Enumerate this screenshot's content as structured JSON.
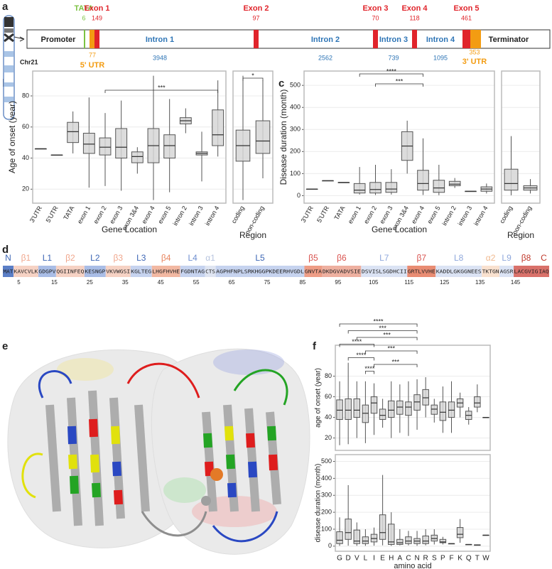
{
  "panel_a": {
    "label": "a",
    "chromosome": "Chr21",
    "promoter": "Promoter",
    "terminator": "Terminator",
    "tata": {
      "name": "TATA",
      "length": 6
    },
    "utr5": {
      "name": "5' UTR",
      "length": 77
    },
    "utr3": {
      "name": "3' UTR",
      "length": 353
    },
    "exons": [
      {
        "name": "Exon 1",
        "length": 149
      },
      {
        "name": "Exon 2",
        "length": 97
      },
      {
        "name": "Exon 3",
        "length": 70
      },
      {
        "name": "Exon 4",
        "length": 118
      },
      {
        "name": "Exon 5",
        "length": 461
      }
    ],
    "introns": [
      {
        "name": "Intron 1",
        "length": 3948
      },
      {
        "name": "Intron 2",
        "length": 2562
      },
      {
        "name": "Intron 3",
        "length": 739
      },
      {
        "name": "Intron 4",
        "length": 1095
      }
    ]
  },
  "panel_b": {
    "label": "b",
    "ylabel": "Age of onset (year)",
    "xlabel": "Gene Location",
    "region_label": "Region",
    "ylim": [
      11,
      96
    ],
    "yticks": [
      20,
      40,
      60,
      80
    ],
    "main": {
      "categories": [
        "3'UTR",
        "5'UTR",
        "TATA",
        "exon 1",
        "exon 2",
        "exon 3",
        "exon 3&4",
        "exon 4",
        "exon 5",
        "intron 2",
        "intron 3",
        "intron 4"
      ],
      "boxes": [
        [
          46,
          46,
          46,
          46,
          46
        ],
        [
          42,
          42,
          42,
          42,
          42
        ],
        [
          43,
          50,
          57,
          63,
          70
        ],
        [
          21,
          43,
          49,
          56,
          79
        ],
        [
          22,
          42,
          47,
          53,
          69
        ],
        [
          19,
          40,
          47,
          59,
          77
        ],
        [
          30,
          37,
          41,
          44,
          47
        ],
        [
          13,
          37,
          48,
          59,
          93
        ],
        [
          18,
          40,
          48,
          55,
          78
        ],
        [
          56,
          62,
          64,
          66,
          72
        ],
        [
          25,
          42,
          43,
          44,
          57
        ],
        [
          41,
          48,
          55,
          71,
          90
        ]
      ],
      "significance": [
        {
          "label": "***",
          "from": "exon 2",
          "to": "intron 4"
        }
      ]
    },
    "region": {
      "categories": [
        "coding",
        "non-coding"
      ],
      "boxes": [
        [
          13,
          38,
          48,
          58,
          93
        ],
        [
          27,
          43,
          51,
          64,
          90
        ]
      ],
      "significance": [
        {
          "label": "*",
          "from": "coding",
          "to": "non-coding"
        }
      ]
    }
  },
  "panel_c": {
    "label": "c",
    "ylabel": "Disease duration (month)",
    "xlabel": "Gene Location",
    "region_label": "Region",
    "ylim": [
      -34,
      565
    ],
    "yticks": [
      0,
      100,
      200,
      300,
      400,
      500
    ],
    "main": {
      "categories": [
        "3'UTR",
        "5'UTR",
        "TATA",
        "exon 1",
        "exon 2",
        "exon 3",
        "exon 3&4",
        "exon 4",
        "exon 5",
        "intron 2",
        "intron 3",
        "intron 4"
      ],
      "boxes": [
        [
          30,
          30,
          30,
          30,
          30
        ],
        [
          68,
          68,
          68,
          68,
          68
        ],
        [
          60,
          60,
          60,
          60,
          60
        ],
        [
          5,
          12,
          25,
          55,
          130
        ],
        [
          3,
          12,
          28,
          60,
          140
        ],
        [
          5,
          15,
          30,
          60,
          120
        ],
        [
          100,
          160,
          225,
          290,
          340
        ],
        [
          3,
          25,
          55,
          115,
          260
        ],
        [
          2,
          15,
          35,
          70,
          140
        ],
        [
          35,
          45,
          52,
          65,
          80
        ],
        [
          20,
          20,
          20,
          20,
          20
        ],
        [
          10,
          20,
          30,
          40,
          55
        ]
      ],
      "significance": [
        {
          "label": "****",
          "from": "exon 1",
          "to": "exon 4"
        },
        {
          "label": "***",
          "from": "exon 2",
          "to": "exon 4"
        }
      ]
    },
    "region": {
      "categories": [
        "coding",
        "non-coding"
      ],
      "boxes": [
        [
          2,
          25,
          55,
          120,
          270
        ],
        [
          10,
          25,
          35,
          45,
          75
        ]
      ],
      "significance": []
    }
  },
  "panel_d": {
    "label": "d",
    "segments": [
      {
        "name": "N",
        "residues": "MAT",
        "color": "#5b7fc7",
        "label_color": "#3d66b5"
      },
      {
        "name": "β1",
        "residues": "KAVCVLK",
        "color": "#f6d2c4",
        "label_color": "#f0a78d"
      },
      {
        "name": "L1",
        "residues": "GDGPV",
        "color": "#a9bde6",
        "label_color": "#3d66b5"
      },
      {
        "name": "β2",
        "residues": "QGIINFEQ",
        "color": "#f6d2c4",
        "label_color": "#f0a78d"
      },
      {
        "name": "L2",
        "residues": "KESNGP",
        "color": "#a9bde6",
        "label_color": "#3d66b5"
      },
      {
        "name": "β3",
        "residues": "VKVWGSI",
        "color": "#f6d2c4",
        "label_color": "#f0a78d"
      },
      {
        "name": "L3",
        "residues": "KGLTEG",
        "color": "#c6d3ef",
        "label_color": "#3d66b5"
      },
      {
        "name": "β4",
        "residues": "LHGFHVHE",
        "color": "#f2b8a2",
        "label_color": "#e8855f"
      },
      {
        "name": "L4",
        "residues": "FGDNTAG",
        "color": "#c6d3ef",
        "label_color": "#6f8fd0"
      },
      {
        "name": "α1",
        "residues": "CTS",
        "color": "#dfe5f2",
        "label_color": "#b7c4de"
      },
      {
        "name": "L5",
        "residues": "AGPHFNPLSRKHGGPKDEERHVGDL",
        "color": "#c6d3ef",
        "label_color": "#3d66b5"
      },
      {
        "name": "β5",
        "residues": "GNVTA",
        "color": "#ee9d86",
        "label_color": "#d9534f"
      },
      {
        "name": "β6",
        "residues": "DKDGVADVSIE",
        "color": "#eeb0a0",
        "label_color": "#d9534f"
      },
      {
        "name": "L7",
        "residues": "DSVISLSGDHCII",
        "color": "#dbe3f4",
        "label_color": "#8fa8dc"
      },
      {
        "name": "β7",
        "residues": "GRTLVVHE",
        "color": "#e98c73",
        "label_color": "#d9534f"
      },
      {
        "name": "L8",
        "residues": "KADDLGKGGNEES",
        "color": "#dbe3f4",
        "label_color": "#8fa8dc"
      },
      {
        "name": "α2",
        "residues": "TKTGN",
        "color": "#f9e1cf",
        "label_color": "#f0b88d"
      },
      {
        "name": "L9",
        "residues": "AGSR",
        "color": "#dbe3f4",
        "label_color": "#8fa8dc"
      },
      {
        "name": "β8",
        "residues": "LACGVIG",
        "color": "#d9716a",
        "label_color": "#c0392b"
      },
      {
        "name": "C",
        "residues": "IAQ",
        "color": "#d9716a",
        "label_color": "#c0392b"
      }
    ],
    "residue_ticks": [
      5,
      15,
      25,
      35,
      45,
      55,
      65,
      75,
      85,
      95,
      105,
      115,
      125,
      135,
      145
    ]
  },
  "panel_e": {
    "label": "e"
  },
  "panel_f": {
    "label": "f",
    "xlabel": "amino acid",
    "categories": [
      "G",
      "D",
      "V",
      "L",
      "I",
      "E",
      "H",
      "A",
      "C",
      "N",
      "R",
      "S",
      "P",
      "F",
      "K",
      "Q",
      "T",
      "W"
    ],
    "age": {
      "ylabel": "age of onset (year)",
      "ylim": [
        8,
        110
      ],
      "yticks": [
        20,
        40,
        60,
        80
      ],
      "boxes": [
        [
          13,
          38,
          47,
          57,
          75
        ],
        [
          14,
          38,
          47,
          58,
          93
        ],
        [
          20,
          40,
          47,
          58,
          75
        ],
        [
          15,
          35,
          44,
          52,
          75
        ],
        [
          23,
          44,
          54,
          60,
          73
        ],
        [
          30,
          38,
          42,
          48,
          58
        ],
        [
          20,
          40,
          47,
          56,
          75
        ],
        [
          25,
          43,
          50,
          56,
          72
        ],
        [
          22,
          42,
          50,
          55,
          75
        ],
        [
          28,
          47,
          55,
          62,
          77
        ],
        [
          40,
          52,
          59,
          67,
          79
        ],
        [
          35,
          43,
          48,
          52,
          58
        ],
        [
          25,
          37,
          45,
          55,
          70
        ],
        [
          25,
          40,
          47,
          55,
          75
        ],
        [
          40,
          50,
          54,
          58,
          64
        ],
        [
          33,
          38,
          42,
          46,
          50
        ],
        [
          45,
          50,
          54,
          60,
          72
        ],
        [
          40,
          40,
          40,
          40,
          40
        ]
      ]
    },
    "duration": {
      "ylabel": "disease duration (month)",
      "ylim": [
        -30,
        540
      ],
      "yticks": [
        0,
        100,
        200,
        300,
        400,
        500
      ],
      "boxes": [
        [
          2,
          15,
          35,
          85,
          170
        ],
        [
          3,
          40,
          80,
          160,
          360
        ],
        [
          2,
          15,
          30,
          95,
          140
        ],
        [
          2,
          15,
          30,
          55,
          100
        ],
        [
          3,
          25,
          45,
          70,
          110
        ],
        [
          5,
          40,
          80,
          185,
          420
        ],
        [
          2,
          10,
          25,
          130,
          200
        ],
        [
          5,
          10,
          20,
          40,
          100
        ],
        [
          5,
          15,
          30,
          55,
          90
        ],
        [
          2,
          15,
          30,
          45,
          90
        ],
        [
          5,
          15,
          30,
          60,
          100
        ],
        [
          10,
          30,
          45,
          65,
          100
        ],
        [
          10,
          20,
          25,
          40,
          55
        ],
        [
          15,
          15,
          15,
          15,
          15
        ],
        [
          20,
          50,
          70,
          110,
          160
        ],
        [
          10,
          10,
          10,
          10,
          10
        ],
        [
          5,
          5,
          7,
          8,
          10
        ],
        [
          65,
          65,
          65,
          65,
          65
        ]
      ]
    },
    "significance": [
      {
        "label": "****",
        "from": "G",
        "to": "N"
      },
      {
        "label": "***",
        "from": "D",
        "to": "N"
      },
      {
        "label": "***",
        "from": "V",
        "to": "N"
      },
      {
        "label": "****",
        "from": "G",
        "to": "I"
      },
      {
        "label": "***",
        "from": "L",
        "to": "N"
      },
      {
        "label": "****",
        "from": "D",
        "to": "I"
      },
      {
        "label": "***",
        "from": "I",
        "to": "N"
      },
      {
        "label": "****",
        "from": "L",
        "to": "I"
      }
    ]
  }
}
